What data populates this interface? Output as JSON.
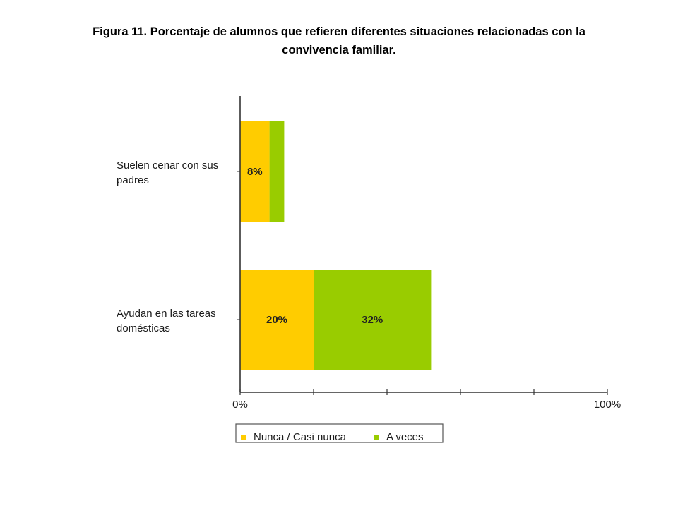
{
  "title": {
    "line1": "Figura 11.  Porcentaje de alumnos  que  refieren diferentes situaciones  relacionadas  con la",
    "line2": "convivencia  familiar."
  },
  "colors": {
    "nunca": "#ffcc00",
    "a_veces": "#99cc00",
    "axis": "#333333"
  },
  "chart_data": {
    "type": "bar",
    "orientation": "horizontal",
    "stacked": true,
    "categories": [
      "Suelen cenar con sus padres",
      "Ayudan en las tareas domésticas"
    ],
    "category_lines": [
      [
        "Suelen cenar con sus",
        "padres"
      ],
      [
        "Ayudan en las tareas",
        "domésticas"
      ]
    ],
    "series": [
      {
        "name": "Nunca / Casi nunca",
        "values": [
          8,
          20
        ],
        "labels": [
          "8%",
          "20%"
        ]
      },
      {
        "name": "A veces",
        "values": [
          4,
          32
        ],
        "labels": [
          "",
          "32%"
        ]
      }
    ],
    "xlim": [
      0,
      100
    ],
    "x_ticks": [
      0,
      20,
      40,
      60,
      80,
      100
    ],
    "x_tick_labels": {
      "0": "0%",
      "100": "100%"
    },
    "legend_position": "bottom",
    "grid": false
  }
}
